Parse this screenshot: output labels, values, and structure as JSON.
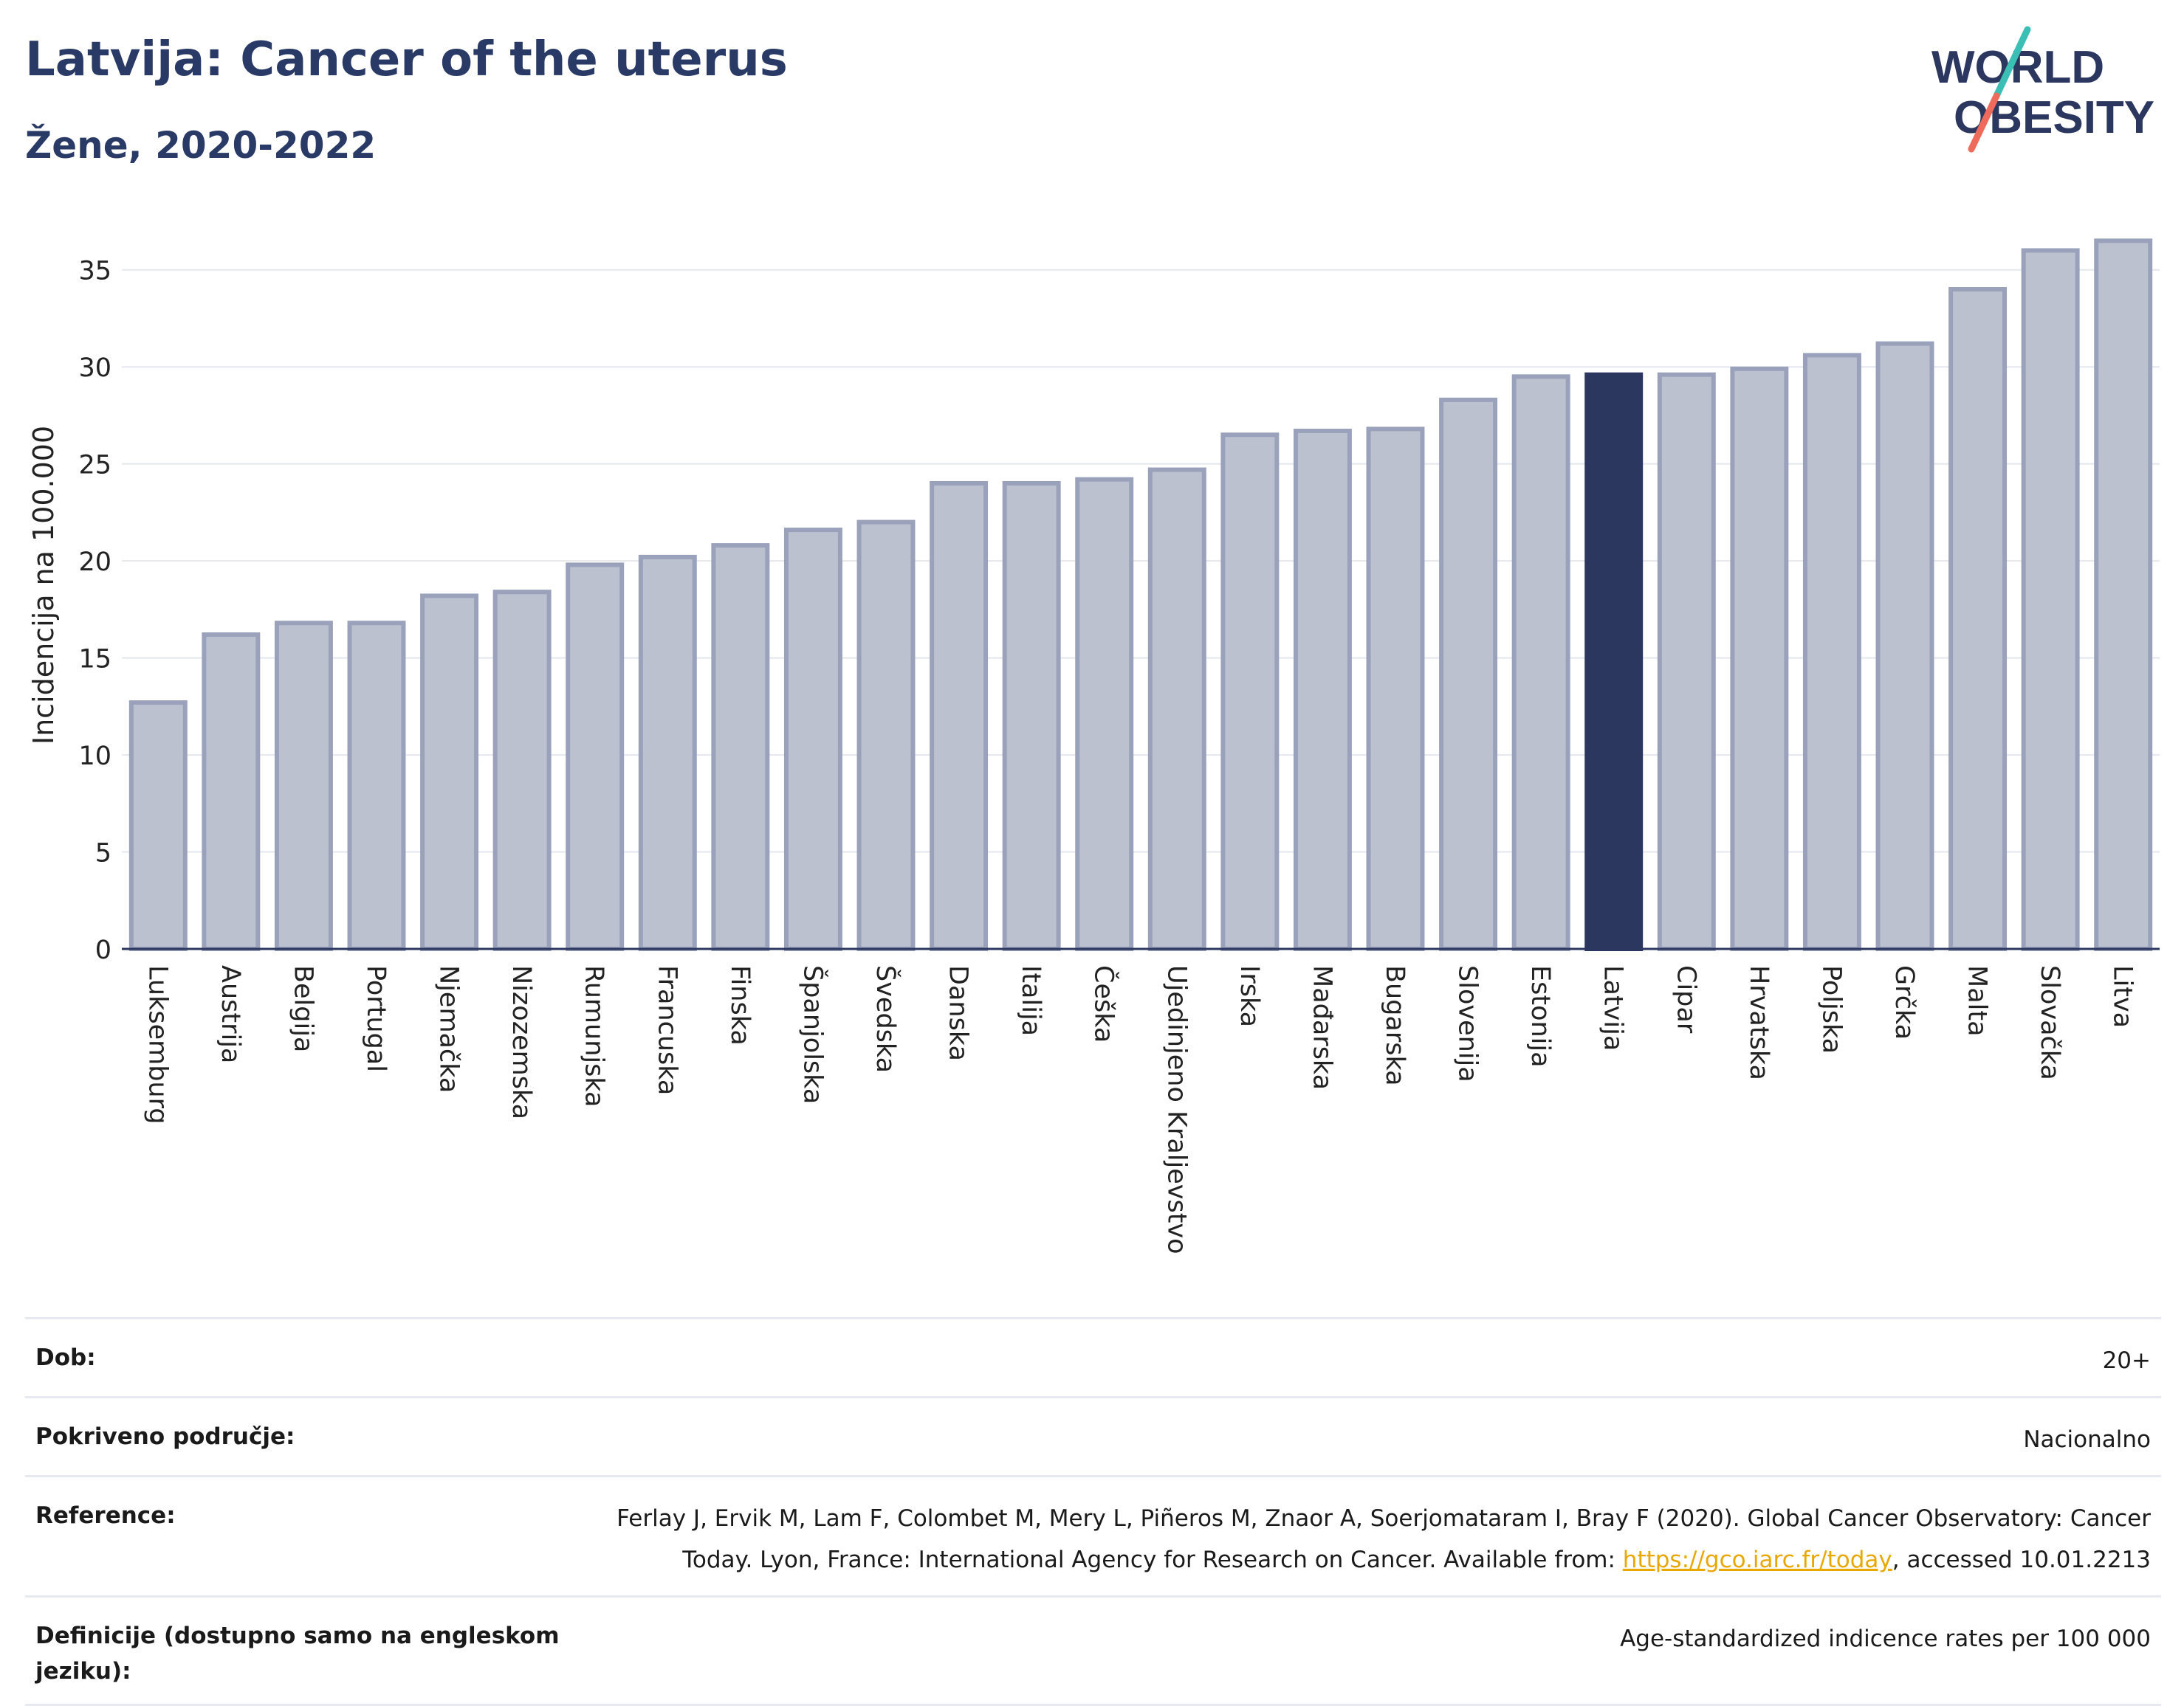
{
  "header": {
    "title": "Latvija: Cancer of the uterus",
    "subtitle": "Žene, 2020-2022"
  },
  "logo": {
    "line1": "WORLD",
    "line2": "OBESITY"
  },
  "colors": {
    "bar": "#bcc1cf",
    "bar_border": "#9aa2bb",
    "highlight": "#2b375f",
    "text": "#2a3a66"
  },
  "chart_data": {
    "type": "bar",
    "ylabel": "Incidencija na 100.000",
    "ylim": [
      0,
      37.5
    ],
    "yticks": [
      0,
      5,
      10,
      15,
      20,
      25,
      30,
      35
    ],
    "grid": true,
    "highlight": "Latvija",
    "categories": [
      "Luksemburg",
      "Austrija",
      "Belgija",
      "Portugal",
      "Njemačka",
      "Nizozemska",
      "Rumunjska",
      "Francuska",
      "Finska",
      "Španjolska",
      "Švedska",
      "Danska",
      "Italija",
      "Češka",
      "Ujedinjeno Kraljevstvo",
      "Irska",
      "Mađarska",
      "Bugarska",
      "Slovenija",
      "Estonija",
      "Latvija",
      "Cipar",
      "Hrvatska",
      "Poljska",
      "Grčka",
      "Malta",
      "Slovačka",
      "Litva"
    ],
    "values": [
      12.7,
      16.2,
      16.8,
      16.8,
      18.2,
      18.4,
      19.8,
      20.2,
      20.8,
      21.6,
      22.0,
      24.0,
      24.0,
      24.2,
      24.7,
      26.5,
      26.7,
      26.8,
      28.3,
      29.5,
      29.6,
      29.6,
      29.9,
      30.6,
      31.2,
      34.0,
      36.0,
      36.5
    ]
  },
  "meta": [
    {
      "label": "Dob:",
      "value": "20+"
    },
    {
      "label": "Pokriveno područje:",
      "value": "Nacionalno"
    },
    {
      "label": "Reference:",
      "value_pre": "Ferlay J, Ervik M, Lam F, Colombet M, Mery L, Piñeros M, Znaor A, Soerjomataram I, Bray F (2020). Global Cancer Observatory: Cancer Today. Lyon, France: International Agency for Research on Cancer. Available from: ",
      "link": "https://gco.iarc.fr/today",
      "value_post": ", accessed 10.01.2213"
    },
    {
      "label": "Definicije (dostupno samo na engleskom jeziku):",
      "value": "Age-standardized indicence rates per 100 000"
    }
  ]
}
